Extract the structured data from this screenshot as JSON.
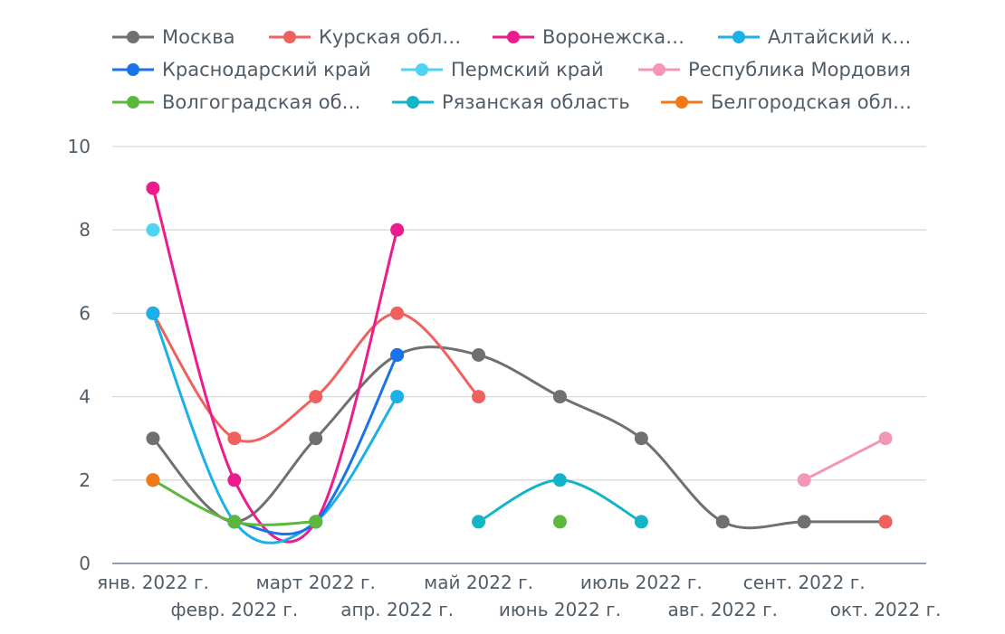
{
  "chart_data": {
    "type": "line",
    "title": "",
    "xlabel": "",
    "ylabel": "",
    "ylim": [
      0,
      10
    ],
    "yticks": [
      0,
      2,
      4,
      6,
      8,
      10
    ],
    "grid": true,
    "legend_position": "top",
    "categories": [
      "янв. 2022 г.",
      "февр. 2022 г.",
      "март 2022 г.",
      "апр. 2022 г.",
      "май 2022 г.",
      "июнь 2022 г.",
      "июль 2022 г.",
      "авг. 2022 г.",
      "сент. 2022 г.",
      "окт. 2022 г."
    ],
    "series": [
      {
        "name": "Москва",
        "legend_label": "Москва",
        "color": "#707070",
        "values": [
          3,
          1,
          3,
          5,
          5,
          4,
          3,
          1,
          1,
          1
        ]
      },
      {
        "name": "Курская область",
        "legend_label": "Курская обл…",
        "color": "#f0605e",
        "values": [
          6,
          3,
          4,
          6,
          4,
          null,
          null,
          null,
          null,
          1
        ]
      },
      {
        "name": "Воронежская область",
        "legend_label": "Воронежска…",
        "color": "#ec1c8c",
        "values": [
          9,
          2,
          1,
          8,
          null,
          null,
          null,
          null,
          null,
          null
        ]
      },
      {
        "name": "Алтайский край",
        "legend_label": "Алтайский к…",
        "color": "#1ab0e8",
        "values": [
          6,
          1,
          1,
          4,
          null,
          null,
          null,
          null,
          null,
          null
        ]
      },
      {
        "name": "Краснодарский край",
        "legend_label": "Краснодарский край",
        "color": "#1a73e8",
        "values": [
          null,
          1,
          1,
          5,
          null,
          null,
          null,
          null,
          null,
          null
        ]
      },
      {
        "name": "Пермский край",
        "legend_label": "Пермский край",
        "color": "#4dd4f4",
        "values": [
          8,
          null,
          null,
          null,
          null,
          null,
          null,
          null,
          null,
          null
        ]
      },
      {
        "name": "Республика Мордовия",
        "legend_label": "Республика Мордовия",
        "color": "#f497b5",
        "values": [
          null,
          null,
          null,
          null,
          null,
          null,
          null,
          null,
          2,
          3
        ]
      },
      {
        "name": "Волгоградская область",
        "legend_label": "Волгоградская об…",
        "color": "#5cb83c",
        "values": [
          2,
          1,
          1,
          null,
          null,
          1,
          null,
          null,
          null,
          null
        ]
      },
      {
        "name": "Рязанская область",
        "legend_label": "Рязанская область",
        "color": "#14b4c8",
        "values": [
          null,
          null,
          null,
          null,
          1,
          2,
          1,
          null,
          null,
          null
        ]
      },
      {
        "name": "Белгородская область",
        "legend_label": "Белгородская обл…",
        "color": "#f07818",
        "values": [
          2,
          null,
          null,
          null,
          null,
          null,
          null,
          null,
          null,
          null
        ]
      }
    ]
  }
}
